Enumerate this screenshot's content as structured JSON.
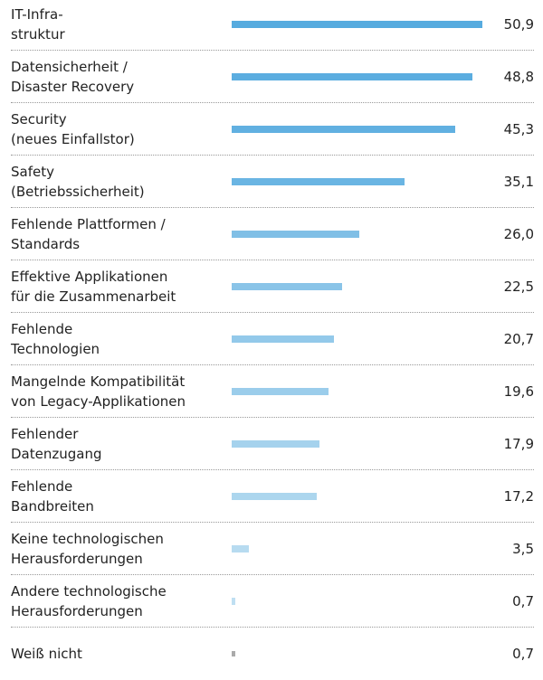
{
  "chart_data": {
    "type": "bar",
    "orientation": "horizontal",
    "categories": [
      "IT-Infra-\nstruktur",
      "Datensicherheit /\nDisaster Recovery",
      "Security\n(neues Einfallstor)",
      "Safety\n(Betriebssicherheit)",
      "Fehlende Plattformen /\nStandards",
      "Effektive Applikationen\nfür die Zusammenarbeit",
      "Fehlende\nTechnologien",
      "Mangelnde Kompatibilität\nvon Legacy-Applikationen",
      "Fehlender\nDatenzugang",
      "Fehlende\nBandbreiten",
      "Keine technologischen\nHerausforderungen",
      "Andere technologische\nHerausforderungen",
      "Weiß nicht"
    ],
    "values": [
      50.9,
      48.8,
      45.3,
      35.1,
      26.0,
      22.5,
      20.7,
      19.6,
      17.9,
      17.2,
      3.5,
      0.7,
      0.7
    ],
    "value_labels": [
      "50,9",
      "48,8",
      "45,3",
      "35,1",
      "26,0",
      "22,5",
      "20,7",
      "19,6",
      "17,9",
      "17,2",
      "3,5",
      "0,7",
      "0,7"
    ],
    "colors": [
      "#56abdf",
      "#5badE0",
      "#61b0e1",
      "#6ab5e3",
      "#80bfe6",
      "#8ac4e8",
      "#93c9ea",
      "#9bcdeb",
      "#a5d2ed",
      "#acd6ee",
      "#b7dbf0",
      "#bfdff2",
      "#aaaaaa"
    ]
  }
}
